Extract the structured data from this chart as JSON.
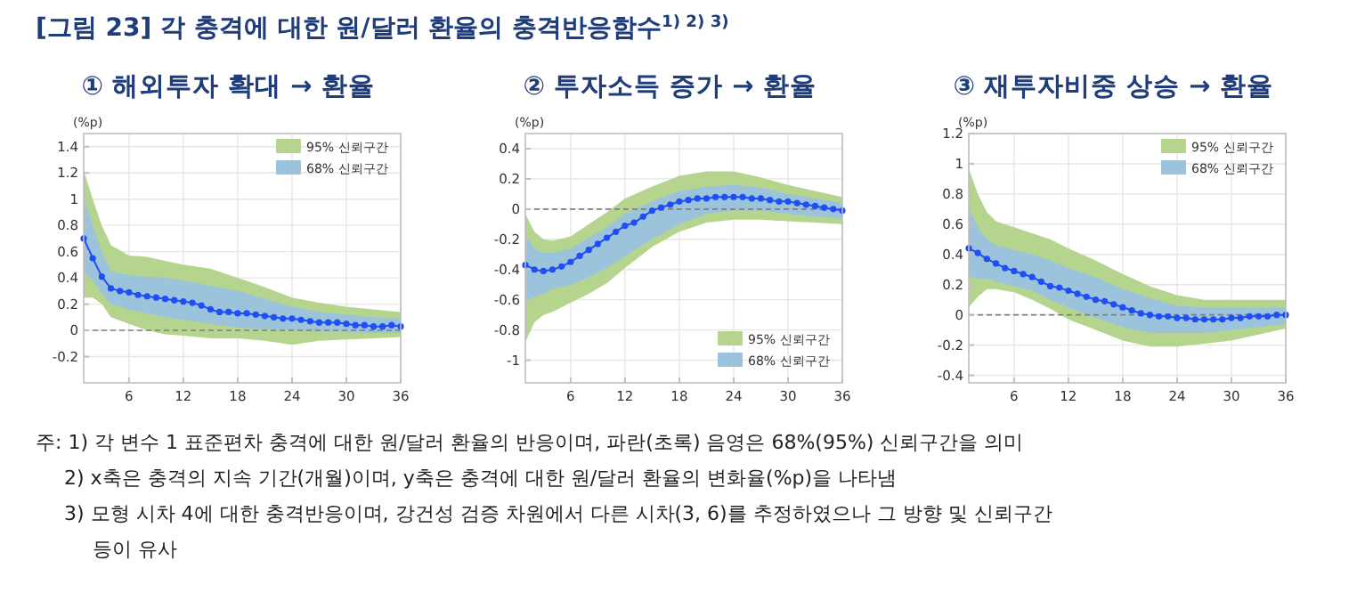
{
  "chart_data": [
    {
      "type": "line",
      "title": "① 해외투자 확대 → 환율",
      "ylabel": "(%p)",
      "xlim": [
        1,
        36
      ],
      "xticks": [
        6,
        12,
        18,
        24,
        30,
        36
      ],
      "ylim": [
        -0.4,
        1.5
      ],
      "yticks": [
        -0.2,
        0,
        0.2,
        0.4,
        0.6,
        0.8,
        1,
        1.2,
        1.4
      ],
      "grid": true,
      "legend": "top right",
      "marker": "circle",
      "annotations": [
        "[그림 23] 각 충격에 대한 원/달러 환율의 충격반응함수$^{1) 2) 3)}$",
        "주: 1) 각 변수 1 표준편차 충격에 대한 원/달러 환율의 반응이며, 파란(초록) 음영은 68%(95%) 신뢰구간을 의미",
        "2) x축은 충격의 지속 기간(개월)이며, y축은 충격에 대한 원/달러 환율의 변화율(%p)을 나타냄",
        "3) 모형 시차 4에 대한 충격반응이며, 강건성 검증 차원에서 다른 시차(3, 6)를 추정하였으나 그 방향 및 신뢰구간 등이 유사"
      ],
      "ref_lines": [
        {
          "axis": "y",
          "value": 0,
          "color": "#7f7f7f",
          "line_style": "dashed"
        }
      ],
      "series": [
        {
          "type": "line",
          "name": "95% 신뢰구간",
          "color": "#b5d58f",
          "x": [
            1,
            2,
            3,
            4,
            6,
            8,
            10,
            12,
            15,
            18,
            21,
            24,
            27,
            30,
            33,
            36
          ],
          "values": [
            null,
            null,
            null,
            null,
            null,
            null,
            null,
            null,
            null,
            null,
            null,
            null,
            null,
            null,
            null,
            null
          ],
          "lower": [
            0.25,
            0.25,
            0.2,
            0.1,
            0.05,
            0,
            -0.03,
            -0.04,
            -0.06,
            -0.06,
            -0.08,
            -0.11,
            -0.08,
            -0.07,
            -0.06,
            -0.05
          ],
          "upper": [
            1.22,
            1,
            0.8,
            0.65,
            0.57,
            0.56,
            0.53,
            0.5,
            0.47,
            0.4,
            0.33,
            0.25,
            0.21,
            0.18,
            0.16,
            0.14
          ]
        },
        {
          "type": "line",
          "name": "68% 신뢰구간",
          "color": "#9cc3dc",
          "x": [
            1,
            2,
            3,
            4,
            6,
            8,
            10,
            12,
            15,
            18,
            21,
            24,
            27,
            30,
            33,
            36
          ],
          "values": [
            null,
            null,
            null,
            null,
            null,
            null,
            null,
            null,
            null,
            null,
            null,
            null,
            null,
            null,
            null,
            null
          ],
          "lower": [
            0.45,
            0.38,
            0.28,
            0.2,
            0.16,
            0.13,
            0.1,
            0.08,
            0.05,
            0.02,
            0.01,
            0,
            -0.01,
            -0.01,
            -0.02,
            -0.02
          ],
          "upper": [
            1,
            0.8,
            0.6,
            0.45,
            0.42,
            0.41,
            0.4,
            0.38,
            0.34,
            0.3,
            0.24,
            0.18,
            0.14,
            0.12,
            0.1,
            0.09
          ]
        },
        {
          "type": "line",
          "color": "#1f4ef5",
          "x": [
            1,
            2,
            3,
            4,
            5,
            6,
            7,
            8,
            9,
            10,
            11,
            12,
            13,
            14,
            15,
            16,
            17,
            18,
            19,
            20,
            21,
            22,
            23,
            24,
            25,
            26,
            27,
            28,
            29,
            30,
            31,
            32,
            33,
            34,
            35,
            36
          ],
          "values": [
            0.7,
            0.55,
            0.41,
            0.32,
            0.3,
            0.29,
            0.27,
            0.26,
            0.25,
            0.24,
            0.23,
            0.22,
            0.21,
            0.19,
            0.16,
            0.14,
            0.14,
            0.13,
            0.13,
            0.12,
            0.11,
            0.1,
            0.09,
            0.09,
            0.08,
            0.07,
            0.06,
            0.06,
            0.06,
            0.05,
            0.04,
            0.04,
            0.03,
            0.03,
            0.04,
            0.03
          ]
        }
      ]
    },
    {
      "type": "line",
      "title": "② 투자소득 증가 → 환율",
      "ylabel": "(%p)",
      "xlim": [
        1,
        36
      ],
      "xticks": [
        6,
        12,
        18,
        24,
        30,
        36
      ],
      "ylim": [
        -1.15,
        0.5
      ],
      "yticks": [
        -1,
        -0.8,
        -0.6,
        -0.4,
        -0.2,
        0,
        0.2,
        0.4
      ],
      "grid": true,
      "legend": "bottom right",
      "marker": "circle",
      "ref_lines": [
        {
          "axis": "y",
          "value": 0,
          "color": "#7f7f7f",
          "line_style": "dashed"
        }
      ],
      "series": [
        {
          "type": "line",
          "name": "95% 신뢰구간",
          "color": "#b5d58f",
          "x": [
            1,
            2,
            3,
            4,
            6,
            8,
            10,
            12,
            15,
            18,
            21,
            24,
            27,
            30,
            33,
            36
          ],
          "values": [
            null,
            null,
            null,
            null,
            null,
            null,
            null,
            null,
            null,
            null,
            null,
            null,
            null,
            null,
            null,
            null
          ],
          "lower": [
            -0.88,
            -0.75,
            -0.7,
            -0.68,
            -0.62,
            -0.56,
            -0.49,
            -0.39,
            -0.25,
            -0.15,
            -0.09,
            -0.07,
            -0.07,
            -0.08,
            -0.09,
            -0.1
          ],
          "upper": [
            -0.03,
            -0.15,
            -0.2,
            -0.21,
            -0.18,
            -0.1,
            -0.02,
            0.07,
            0.15,
            0.22,
            0.25,
            0.25,
            0.21,
            0.16,
            0.12,
            0.08
          ]
        },
        {
          "type": "line",
          "name": "68% 신뢰구간",
          "color": "#9cc3dc",
          "x": [
            1,
            2,
            3,
            4,
            6,
            8,
            10,
            12,
            15,
            18,
            21,
            24,
            27,
            30,
            33,
            36
          ],
          "values": [
            null,
            null,
            null,
            null,
            null,
            null,
            null,
            null,
            null,
            null,
            null,
            null,
            null,
            null,
            null,
            null
          ],
          "lower": [
            -0.62,
            -0.58,
            -0.56,
            -0.53,
            -0.5,
            -0.45,
            -0.39,
            -0.31,
            -0.2,
            -0.1,
            -0.03,
            -0.01,
            -0.01,
            -0.03,
            -0.05,
            -0.06
          ],
          "upper": [
            -0.18,
            -0.26,
            -0.29,
            -0.29,
            -0.26,
            -0.19,
            -0.12,
            -0.03,
            0.05,
            0.12,
            0.15,
            0.16,
            0.14,
            0.1,
            0.07,
            0.04
          ]
        },
        {
          "type": "line",
          "color": "#1f4ef5",
          "x": [
            1,
            2,
            3,
            4,
            5,
            6,
            7,
            8,
            9,
            10,
            11,
            12,
            13,
            14,
            15,
            16,
            17,
            18,
            19,
            20,
            21,
            22,
            23,
            24,
            25,
            26,
            27,
            28,
            29,
            30,
            31,
            32,
            33,
            34,
            35,
            36
          ],
          "values": [
            -0.37,
            -0.4,
            -0.41,
            -0.4,
            -0.38,
            -0.35,
            -0.31,
            -0.27,
            -0.23,
            -0.19,
            -0.15,
            -0.11,
            -0.09,
            -0.05,
            -0.01,
            0.01,
            0.03,
            0.05,
            0.06,
            0.07,
            0.07,
            0.08,
            0.08,
            0.08,
            0.08,
            0.07,
            0.07,
            0.06,
            0.05,
            0.05,
            0.04,
            0.03,
            0.02,
            0.01,
            0,
            -0.01
          ]
        }
      ]
    },
    {
      "type": "line",
      "title": "③ 재투자비중 상승 → 환율",
      "ylabel": "(%p)",
      "xlim": [
        1,
        36
      ],
      "xticks": [
        6,
        12,
        18,
        24,
        30,
        36
      ],
      "ylim": [
        -0.45,
        1.2
      ],
      "yticks": [
        -0.4,
        -0.2,
        0,
        0.2,
        0.4,
        0.6,
        0.8,
        1,
        1.2
      ],
      "grid": true,
      "legend": "top right",
      "marker": "circle",
      "ref_lines": [
        {
          "axis": "y",
          "value": 0,
          "color": "#7f7f7f",
          "line_style": "dashed"
        }
      ],
      "series": [
        {
          "type": "line",
          "name": "95% 신뢰구간",
          "color": "#b5d58f",
          "x": [
            1,
            2,
            3,
            4,
            6,
            8,
            10,
            12,
            15,
            18,
            21,
            24,
            27,
            30,
            33,
            36
          ],
          "values": [
            null,
            null,
            null,
            null,
            null,
            null,
            null,
            null,
            null,
            null,
            null,
            null,
            null,
            null,
            null,
            null
          ],
          "lower": [
            0.05,
            0.12,
            0.17,
            0.17,
            0.15,
            0.1,
            0.04,
            -0.03,
            -0.1,
            -0.17,
            -0.21,
            -0.21,
            -0.19,
            -0.17,
            -0.13,
            -0.09
          ],
          "upper": [
            0.97,
            0.8,
            0.68,
            0.62,
            0.58,
            0.54,
            0.5,
            0.44,
            0.36,
            0.27,
            0.19,
            0.13,
            0.1,
            0.1,
            0.1,
            0.1
          ]
        },
        {
          "type": "line",
          "name": "68% 신뢰구간",
          "color": "#9cc3dc",
          "x": [
            1,
            2,
            3,
            4,
            6,
            8,
            10,
            12,
            15,
            18,
            21,
            24,
            27,
            30,
            33,
            36
          ],
          "values": [
            null,
            null,
            null,
            null,
            null,
            null,
            null,
            null,
            null,
            null,
            null,
            null,
            null,
            null,
            null,
            null
          ],
          "lower": [
            0.25,
            0.24,
            0.24,
            0.22,
            0.19,
            0.16,
            0.1,
            0.05,
            -0.02,
            -0.08,
            -0.12,
            -0.12,
            -0.12,
            -0.1,
            -0.08,
            -0.06
          ],
          "upper": [
            0.7,
            0.58,
            0.5,
            0.46,
            0.43,
            0.4,
            0.36,
            0.31,
            0.25,
            0.17,
            0.11,
            0.06,
            0.05,
            0.05,
            0.05,
            0.05
          ]
        },
        {
          "type": "line",
          "color": "#1f4ef5",
          "x": [
            1,
            2,
            3,
            4,
            5,
            6,
            7,
            8,
            9,
            10,
            11,
            12,
            13,
            14,
            15,
            16,
            17,
            18,
            19,
            20,
            21,
            22,
            23,
            24,
            25,
            26,
            27,
            28,
            29,
            30,
            31,
            32,
            33,
            34,
            35,
            36
          ],
          "values": [
            0.44,
            0.41,
            0.37,
            0.34,
            0.31,
            0.29,
            0.27,
            0.25,
            0.22,
            0.19,
            0.18,
            0.16,
            0.14,
            0.12,
            0.1,
            0.09,
            0.07,
            0.05,
            0.03,
            0.01,
            0,
            -0.01,
            -0.01,
            -0.02,
            -0.02,
            -0.03,
            -0.03,
            -0.03,
            -0.03,
            -0.02,
            -0.02,
            -0.01,
            -0.01,
            -0.01,
            0,
            0
          ]
        }
      ]
    }
  ]
}
